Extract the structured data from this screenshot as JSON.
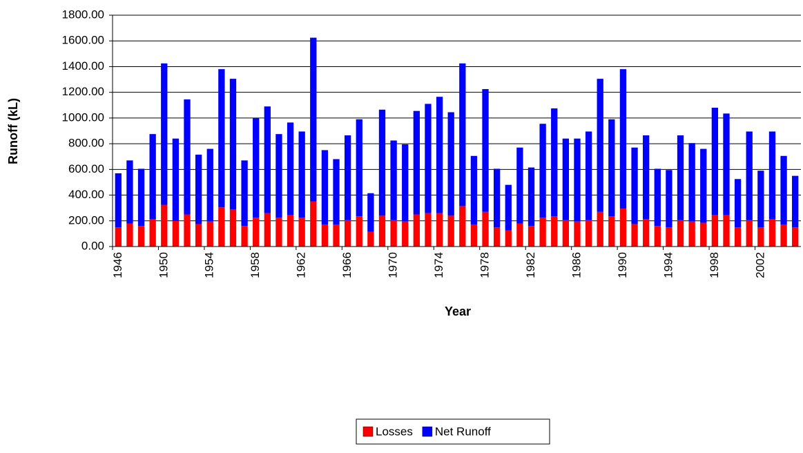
{
  "chart_data": {
    "type": "stacked_bar",
    "x_label": "Year",
    "y_label": "Runoff (kL)",
    "categories": [
      "1946",
      null,
      null,
      null,
      "1950",
      null,
      null,
      null,
      "1954",
      null,
      null,
      null,
      "1958",
      null,
      null,
      null,
      "1962",
      null,
      null,
      null,
      "1966",
      null,
      null,
      null,
      "1970",
      null,
      null,
      null,
      "1974",
      null,
      null,
      null,
      "1978",
      null,
      null,
      null,
      "1982",
      null,
      null,
      null,
      "1986",
      null,
      null,
      null,
      "1990",
      null,
      null,
      null,
      "1994",
      null,
      null,
      null,
      "1998",
      null,
      null,
      null,
      "2002",
      null,
      null,
      null
    ],
    "series": [
      {
        "name": "Losses",
        "color": "#ff0000",
        "values": [
          150,
          180,
          160,
          215,
          325,
          200,
          250,
          175,
          195,
          305,
          290,
          160,
          225,
          260,
          225,
          245,
          225,
          350,
          170,
          170,
          205,
          235,
          115,
          240,
          205,
          195,
          250,
          260,
          260,
          240,
          315,
          170,
          270,
          150,
          125,
          180,
          160,
          225,
          235,
          205,
          195,
          205,
          270,
          235,
          295,
          175,
          215,
          160,
          150,
          205,
          195,
          185,
          245,
          245,
          150,
          205,
          150,
          215,
          170,
          150
        ]
      },
      {
        "name": "Net Runoff",
        "color": "#0000ff",
        "values": [
          420,
          490,
          445,
          660,
          1100,
          640,
          895,
          540,
          565,
          1075,
          1015,
          510,
          775,
          830,
          650,
          720,
          670,
          1275,
          580,
          510,
          660,
          755,
          300,
          825,
          620,
          600,
          805,
          850,
          905,
          805,
          1110,
          535,
          955,
          455,
          355,
          590,
          455,
          730,
          840,
          635,
          645,
          690,
          1035,
          755,
          1085,
          595,
          650,
          445,
          445,
          660,
          610,
          575,
          835,
          790,
          375,
          690,
          440,
          680,
          535,
          400
        ]
      }
    ],
    "ylim": [
      0,
      1800
    ],
    "yticks": [
      {
        "value": 0,
        "label": "0.00"
      },
      {
        "value": 200,
        "label": "200.00"
      },
      {
        "value": 400,
        "label": "400.00"
      },
      {
        "value": 600,
        "label": "600.00"
      },
      {
        "value": 800,
        "label": "800.00"
      },
      {
        "value": 1000,
        "label": "1000.00"
      },
      {
        "value": 1200,
        "label": "1200.00"
      },
      {
        "value": 1400,
        "label": "1400.00"
      },
      {
        "value": 1600,
        "label": "1600.00"
      },
      {
        "value": 1800,
        "label": "1800.00"
      }
    ],
    "grid": true,
    "legend": "bottom"
  }
}
